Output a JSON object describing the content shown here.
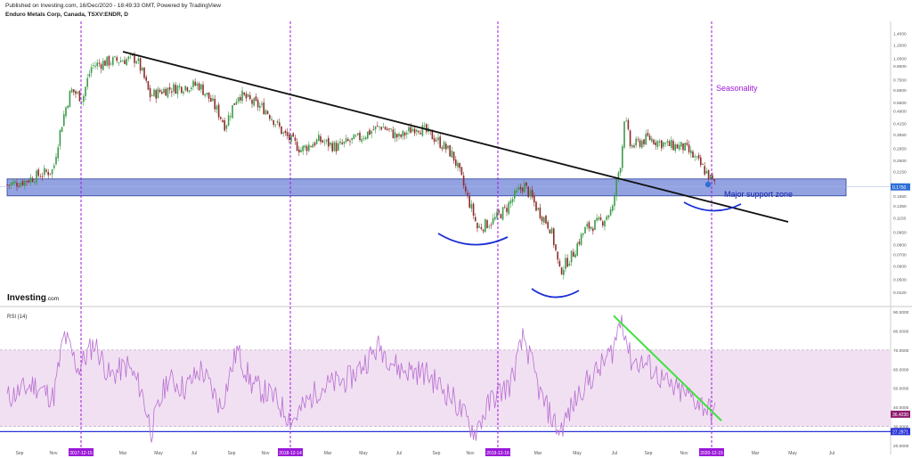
{
  "header": {
    "published": "Published on Investing.com, 16/Dec/2020 - 18:49:33 GMT, Powered by TradingView",
    "symbol": "Enduro Metals Corp, Canada, TSXV:ENDR, D"
  },
  "logo": {
    "name": "Investing",
    "suffix": ".com"
  },
  "colors": {
    "up": "#3d9b4a",
    "down": "#8e2b2b",
    "vline": "#9b19d9",
    "trend": "#111111",
    "zone": "#3a55c9",
    "smile": "#1c2fd6",
    "rsi": "#b86fd2",
    "rsi_band": "#f1e0f2",
    "rsi_trend": "#3ee13e",
    "price_tag": "#2f6fd6",
    "rsi_tag": "#8e1a6d",
    "base_line": "#2b33d6"
  },
  "chart_data": [
    {
      "type": "candlestick",
      "title": "Enduro Metals Corp, Canada, TSXV:ENDR, D",
      "y_scale": "log",
      "ylim": [
        0.035,
        1.65
      ],
      "y_ticks": [
        "1.4000",
        "1.2000",
        "1.0000",
        "0.9000",
        "0.7500",
        "0.6500",
        "0.5500",
        "0.4900",
        "0.4150",
        "0.3550",
        "0.2950",
        "0.2500",
        "0.2150",
        "0.1750",
        "0.1550",
        "0.1350",
        "0.1150",
        "0.0950",
        "0.0800",
        "0.0700",
        "0.0600",
        "0.0500",
        "0.0420"
      ],
      "x_ticks": [
        "Sep",
        "Nov",
        "Mar",
        "May",
        "Jul",
        "Sep",
        "Nov",
        "Mar",
        "May",
        "Jul",
        "Sep",
        "Nov",
        "Mar",
        "May",
        "Jul",
        "Sep",
        "Nov",
        "Mar",
        "May",
        "Jul"
      ],
      "date_flags": [
        "2017-12-15",
        "2018-12-14",
        "2019-12-16",
        "2020-12-15"
      ],
      "last_price": "0.1750",
      "annotations": {
        "seasonality": "Seasonality",
        "support": "Major support zone"
      },
      "support_zone": [
        0.155,
        0.195
      ],
      "trendline": {
        "from": [
          1.1,
          "early 2018"
        ],
        "to": [
          0.12,
          "mid 2021"
        ]
      },
      "price_path": [
        {
          "x": 0,
          "y": 0.18
        },
        {
          "x": 20,
          "y": 0.19
        },
        {
          "x": 40,
          "y": 0.21
        },
        {
          "x": 52,
          "y": 0.22
        },
        {
          "x": 60,
          "y": 0.38
        },
        {
          "x": 72,
          "y": 0.65
        },
        {
          "x": 85,
          "y": 0.58
        },
        {
          "x": 95,
          "y": 0.9
        },
        {
          "x": 110,
          "y": 0.95
        },
        {
          "x": 130,
          "y": 0.98
        },
        {
          "x": 145,
          "y": 1.0
        },
        {
          "x": 160,
          "y": 0.6
        },
        {
          "x": 175,
          "y": 0.65
        },
        {
          "x": 195,
          "y": 0.68
        },
        {
          "x": 215,
          "y": 0.7
        },
        {
          "x": 230,
          "y": 0.55
        },
        {
          "x": 245,
          "y": 0.4
        },
        {
          "x": 260,
          "y": 0.62
        },
        {
          "x": 275,
          "y": 0.55
        },
        {
          "x": 290,
          "y": 0.5
        },
        {
          "x": 310,
          "y": 0.36
        },
        {
          "x": 330,
          "y": 0.29
        },
        {
          "x": 350,
          "y": 0.33
        },
        {
          "x": 370,
          "y": 0.3
        },
        {
          "x": 395,
          "y": 0.34
        },
        {
          "x": 420,
          "y": 0.4
        },
        {
          "x": 440,
          "y": 0.34
        },
        {
          "x": 460,
          "y": 0.4
        },
        {
          "x": 480,
          "y": 0.34
        },
        {
          "x": 500,
          "y": 0.27
        },
        {
          "x": 515,
          "y": 0.16
        },
        {
          "x": 528,
          "y": 0.1
        },
        {
          "x": 545,
          "y": 0.11
        },
        {
          "x": 560,
          "y": 0.13
        },
        {
          "x": 580,
          "y": 0.18
        },
        {
          "x": 595,
          "y": 0.13
        },
        {
          "x": 610,
          "y": 0.1
        },
        {
          "x": 620,
          "y": 0.055
        },
        {
          "x": 635,
          "y": 0.07
        },
        {
          "x": 650,
          "y": 0.1
        },
        {
          "x": 668,
          "y": 0.11
        },
        {
          "x": 680,
          "y": 0.13
        },
        {
          "x": 690,
          "y": 0.26
        },
        {
          "x": 693,
          "y": 0.45
        },
        {
          "x": 700,
          "y": 0.3
        },
        {
          "x": 720,
          "y": 0.34
        },
        {
          "x": 740,
          "y": 0.31
        },
        {
          "x": 760,
          "y": 0.3
        },
        {
          "x": 780,
          "y": 0.23
        },
        {
          "x": 796,
          "y": 0.175
        }
      ]
    },
    {
      "type": "line",
      "title": "RSI (14)",
      "ylim": [
        20,
        90
      ],
      "y_ticks": [
        "90.0000",
        "80.0000",
        "70.0000",
        "60.0000",
        "50.0000",
        "40.0000",
        "30.0000",
        "20.0000"
      ],
      "band": [
        30,
        70
      ],
      "last_value": "36.4230",
      "base_value": "27.2871",
      "rsi_path": [
        {
          "x": 0,
          "y": 45
        },
        {
          "x": 30,
          "y": 52
        },
        {
          "x": 52,
          "y": 45
        },
        {
          "x": 64,
          "y": 78
        },
        {
          "x": 80,
          "y": 60
        },
        {
          "x": 98,
          "y": 74
        },
        {
          "x": 115,
          "y": 56
        },
        {
          "x": 135,
          "y": 62
        },
        {
          "x": 150,
          "y": 50
        },
        {
          "x": 162,
          "y": 28
        },
        {
          "x": 180,
          "y": 55
        },
        {
          "x": 200,
          "y": 50
        },
        {
          "x": 218,
          "y": 60
        },
        {
          "x": 240,
          "y": 40
        },
        {
          "x": 258,
          "y": 70
        },
        {
          "x": 275,
          "y": 52
        },
        {
          "x": 300,
          "y": 45
        },
        {
          "x": 320,
          "y": 33
        },
        {
          "x": 350,
          "y": 50
        },
        {
          "x": 385,
          "y": 55
        },
        {
          "x": 418,
          "y": 72
        },
        {
          "x": 440,
          "y": 60
        },
        {
          "x": 470,
          "y": 58
        },
        {
          "x": 500,
          "y": 45
        },
        {
          "x": 525,
          "y": 27
        },
        {
          "x": 545,
          "y": 45
        },
        {
          "x": 565,
          "y": 52
        },
        {
          "x": 580,
          "y": 77
        },
        {
          "x": 600,
          "y": 45
        },
        {
          "x": 620,
          "y": 27
        },
        {
          "x": 645,
          "y": 50
        },
        {
          "x": 665,
          "y": 60
        },
        {
          "x": 680,
          "y": 70
        },
        {
          "x": 690,
          "y": 88
        },
        {
          "x": 700,
          "y": 65
        },
        {
          "x": 720,
          "y": 62
        },
        {
          "x": 745,
          "y": 50
        },
        {
          "x": 770,
          "y": 45
        },
        {
          "x": 796,
          "y": 36
        }
      ],
      "rsi_trendline": {
        "from": [
          88,
          "mid 2020"
        ],
        "to": [
          33,
          "early 2021"
        ]
      }
    }
  ]
}
